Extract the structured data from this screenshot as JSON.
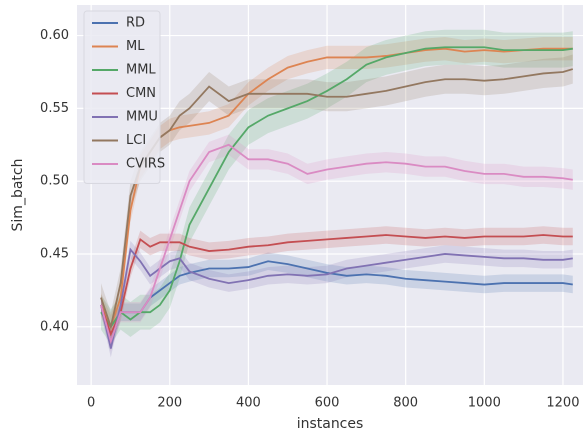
{
  "chart_data": {
    "type": "line",
    "xlabel": "instances",
    "ylabel": "Sim_batch",
    "x": [
      25,
      50,
      75,
      100,
      125,
      150,
      175,
      200,
      225,
      250,
      300,
      350,
      400,
      450,
      500,
      550,
      600,
      650,
      700,
      750,
      800,
      850,
      900,
      950,
      1000,
      1050,
      1100,
      1150,
      1200,
      1225
    ],
    "series": [
      {
        "name": "RD",
        "color": "#4c72b0",
        "ci": 0.006,
        "values": [
          0.415,
          0.39,
          0.41,
          0.41,
          0.41,
          0.42,
          0.425,
          0.43,
          0.435,
          0.437,
          0.44,
          0.44,
          0.441,
          0.445,
          0.443,
          0.44,
          0.437,
          0.435,
          0.436,
          0.435,
          0.433,
          0.432,
          0.431,
          0.43,
          0.429,
          0.43,
          0.43,
          0.43,
          0.43,
          0.429
        ]
      },
      {
        "name": "ML",
        "color": "#dd8452",
        "ci": 0.008,
        "values": [
          0.415,
          0.4,
          0.42,
          0.48,
          0.51,
          0.52,
          0.53,
          0.535,
          0.537,
          0.538,
          0.54,
          0.545,
          0.56,
          0.57,
          0.578,
          0.582,
          0.585,
          0.585,
          0.585,
          0.586,
          0.588,
          0.59,
          0.591,
          0.589,
          0.59,
          0.589,
          0.59,
          0.591,
          0.591,
          0.591
        ]
      },
      {
        "name": "MML",
        "color": "#55a868",
        "ci": 0.012,
        "values": [
          0.41,
          0.4,
          0.41,
          0.405,
          0.41,
          0.41,
          0.415,
          0.425,
          0.445,
          0.47,
          0.495,
          0.52,
          0.537,
          0.545,
          0.55,
          0.555,
          0.562,
          0.57,
          0.58,
          0.585,
          0.588,
          0.591,
          0.592,
          0.592,
          0.592,
          0.59,
          0.59,
          0.59,
          0.59,
          0.591
        ]
      },
      {
        "name": "CMN",
        "color": "#c44e52",
        "ci": 0.006,
        "values": [
          0.415,
          0.395,
          0.41,
          0.44,
          0.46,
          0.455,
          0.458,
          0.458,
          0.458,
          0.455,
          0.452,
          0.453,
          0.455,
          0.456,
          0.458,
          0.459,
          0.46,
          0.461,
          0.462,
          0.463,
          0.462,
          0.461,
          0.462,
          0.461,
          0.462,
          0.462,
          0.462,
          0.463,
          0.462,
          0.462
        ]
      },
      {
        "name": "MMU",
        "color": "#8172b3",
        "ci": 0.006,
        "values": [
          0.415,
          0.385,
          0.415,
          0.453,
          0.445,
          0.435,
          0.44,
          0.445,
          0.447,
          0.438,
          0.433,
          0.43,
          0.432,
          0.435,
          0.436,
          0.435,
          0.436,
          0.44,
          0.442,
          0.444,
          0.446,
          0.448,
          0.45,
          0.449,
          0.448,
          0.447,
          0.447,
          0.446,
          0.446,
          0.447
        ]
      },
      {
        "name": "LCI",
        "color": "#937860",
        "ci": 0.01,
        "values": [
          0.42,
          0.4,
          0.43,
          0.49,
          0.51,
          0.52,
          0.53,
          0.535,
          0.545,
          0.55,
          0.565,
          0.555,
          0.56,
          0.56,
          0.56,
          0.56,
          0.558,
          0.558,
          0.56,
          0.562,
          0.565,
          0.568,
          0.57,
          0.57,
          0.569,
          0.57,
          0.572,
          0.574,
          0.575,
          0.577
        ]
      },
      {
        "name": "CVIRS",
        "color": "#da8bc3",
        "ci": 0.007,
        "values": [
          0.415,
          0.39,
          0.41,
          0.41,
          0.41,
          0.42,
          0.44,
          0.46,
          0.48,
          0.5,
          0.52,
          0.525,
          0.515,
          0.515,
          0.512,
          0.505,
          0.508,
          0.51,
          0.512,
          0.513,
          0.512,
          0.51,
          0.51,
          0.507,
          0.505,
          0.505,
          0.503,
          0.503,
          0.502,
          0.501
        ]
      }
    ],
    "xlim": [
      -36,
      1251
    ],
    "ylim": [
      0.36,
      0.621
    ],
    "xticks": [
      0,
      200,
      400,
      600,
      800,
      1000,
      1200
    ],
    "yticks": [
      {
        "value": 0.4,
        "label": "0.40"
      },
      {
        "value": 0.45,
        "label": "0.45"
      },
      {
        "value": 0.5,
        "label": "0.50"
      },
      {
        "value": 0.55,
        "label": "0.55"
      },
      {
        "value": 0.6,
        "label": "0.60"
      }
    ],
    "grid": true,
    "legend": "upper-left"
  }
}
